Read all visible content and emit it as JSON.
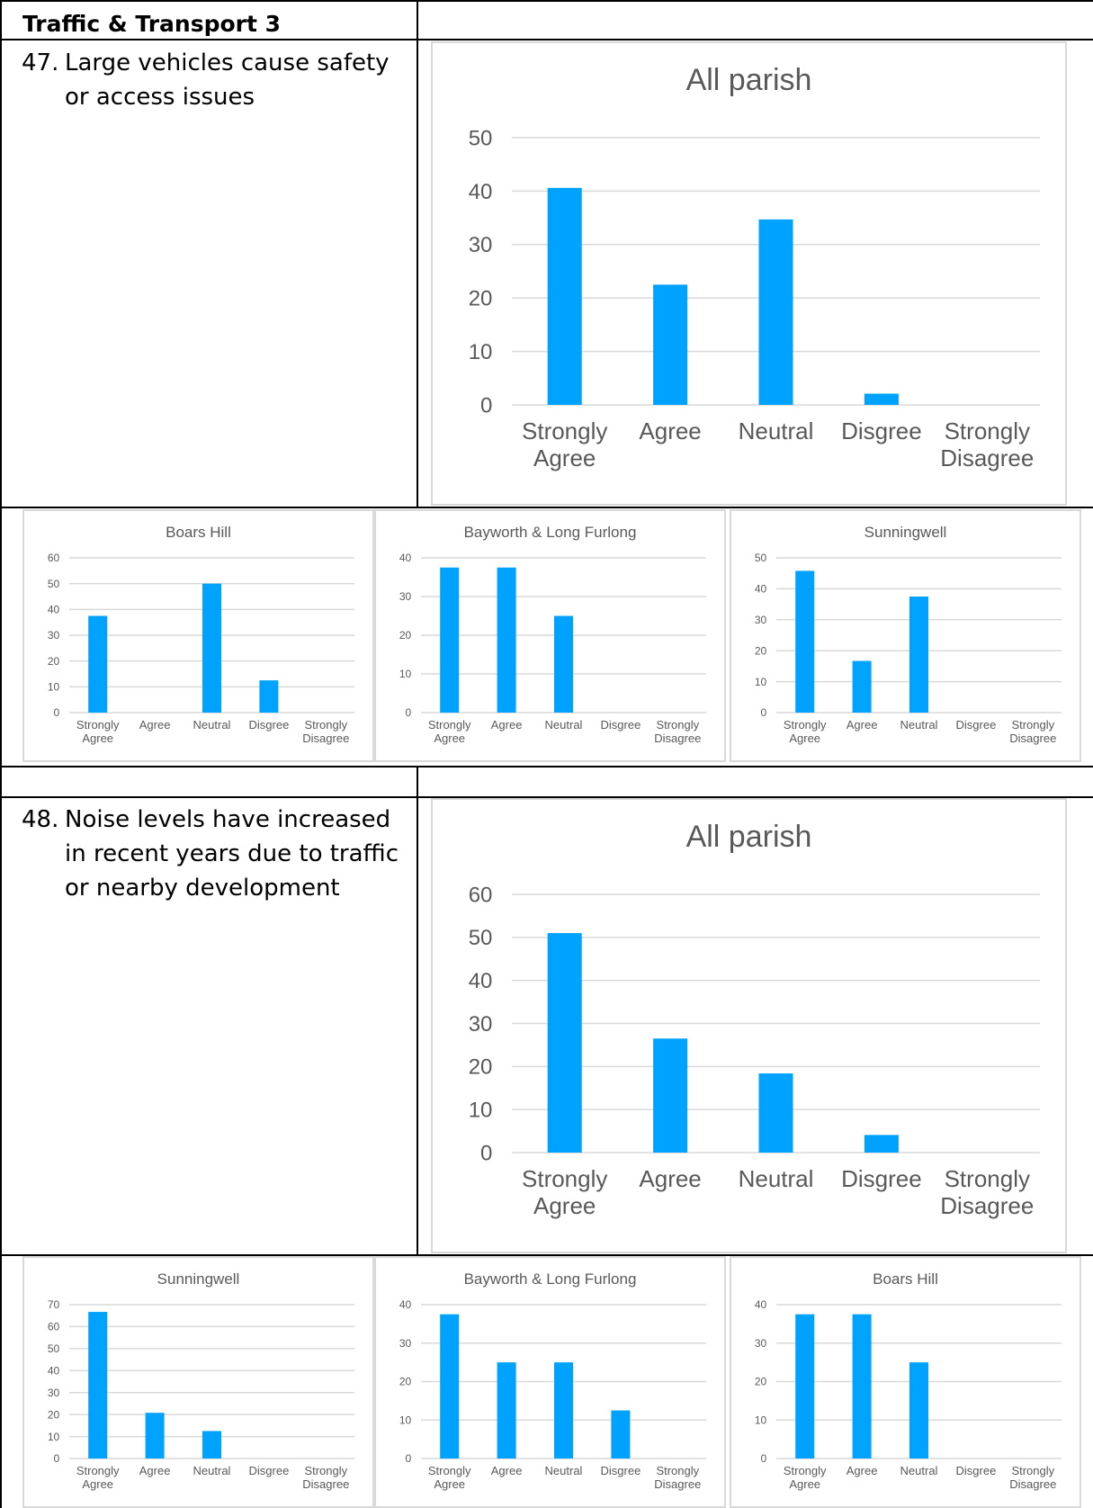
{
  "header": {
    "title": "Traffic & Transport 3"
  },
  "questions": [
    {
      "number": "47.",
      "text": "Large vehicles cause safety or access issues"
    },
    {
      "number": "48.",
      "text": "Noise levels have increased in recent years due to traffic or nearby development"
    }
  ],
  "colors": {
    "bar": "#00a2ff",
    "grid": "#d9d9d9",
    "text": "#595959"
  },
  "chart_data": [
    {
      "id": "q47-all",
      "type": "bar",
      "title": "All parish",
      "categories": [
        "Strongly Agree",
        "Agree",
        "Neutral",
        "Disgree",
        "Strongly Disagree"
      ],
      "values": [
        40.6,
        22.5,
        34.7,
        2.1,
        0
      ],
      "yticks": [
        0,
        10,
        20,
        30,
        40,
        50
      ],
      "ylim": [
        0,
        50
      ]
    },
    {
      "id": "q47-boars",
      "type": "bar",
      "title": "Boars Hill",
      "categories": [
        "Strongly Agree",
        "Agree",
        "Neutral",
        "Disgree",
        "Strongly Disagree"
      ],
      "values": [
        37.5,
        0,
        50,
        12.5,
        0
      ],
      "yticks": [
        0,
        10,
        20,
        30,
        40,
        50,
        60
      ],
      "ylim": [
        0,
        60
      ]
    },
    {
      "id": "q47-bayworth",
      "type": "bar",
      "title": "Bayworth & Long Furlong",
      "categories": [
        "Strongly Agree",
        "Agree",
        "Neutral",
        "Disgree",
        "Strongly Disagree"
      ],
      "values": [
        37.5,
        37.5,
        25,
        0,
        0
      ],
      "yticks": [
        0,
        10,
        20,
        30,
        40
      ],
      "ylim": [
        0,
        40
      ]
    },
    {
      "id": "q47-sunningwell",
      "type": "bar",
      "title": "Sunningwell",
      "categories": [
        "Strongly Agree",
        "Agree",
        "Neutral",
        "Disgree",
        "Strongly Disagree"
      ],
      "values": [
        45.8,
        16.7,
        37.5,
        0,
        0
      ],
      "yticks": [
        0,
        10,
        20,
        30,
        40,
        50
      ],
      "ylim": [
        0,
        50
      ]
    },
    {
      "id": "q48-all",
      "type": "bar",
      "title": "All parish",
      "categories": [
        "Strongly Agree",
        "Agree",
        "Neutral",
        "Disgree",
        "Strongly Disagree"
      ],
      "values": [
        51.0,
        26.5,
        18.4,
        4.1,
        0
      ],
      "yticks": [
        0,
        10,
        20,
        30,
        40,
        50,
        60
      ],
      "ylim": [
        0,
        60
      ]
    },
    {
      "id": "q48-sunningwell",
      "type": "bar",
      "title": "Sunningwell",
      "categories": [
        "Strongly Agree",
        "Agree",
        "Neutral",
        "Disgree",
        "Strongly Disagree"
      ],
      "values": [
        66.7,
        20.8,
        12.5,
        0,
        0
      ],
      "yticks": [
        0,
        10,
        20,
        30,
        40,
        50,
        60,
        70
      ],
      "ylim": [
        0,
        70
      ]
    },
    {
      "id": "q48-bayworth",
      "type": "bar",
      "title": "Bayworth & Long Furlong",
      "categories": [
        "Strongly Agree",
        "Agree",
        "Neutral",
        "Disgree",
        "Strongly Disagree"
      ],
      "values": [
        37.5,
        25,
        25,
        12.5,
        0
      ],
      "yticks": [
        0,
        10,
        20,
        30,
        40
      ],
      "ylim": [
        0,
        40
      ]
    },
    {
      "id": "q48-boars",
      "type": "bar",
      "title": "Boars Hill",
      "categories": [
        "Strongly Agree",
        "Agree",
        "Neutral",
        "Disgree",
        "Strongly Disagree"
      ],
      "values": [
        37.5,
        37.5,
        25,
        0,
        0
      ],
      "yticks": [
        0,
        10,
        20,
        30,
        40
      ],
      "ylim": [
        0,
        40
      ]
    }
  ]
}
